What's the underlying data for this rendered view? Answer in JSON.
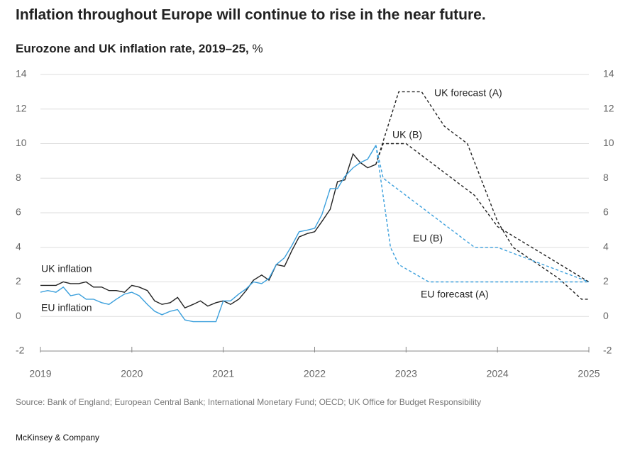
{
  "chart_data": {
    "type": "line",
    "title": "Inflation throughout Europe will continue to rise in the near future.",
    "subtitle": "Eurozone and UK inflation rate, 2019–25,",
    "unit": "%",
    "source": "Source: Bank of England; European Central Bank; International Monetary Fund; OECD; UK Office for Budget Responsibility",
    "footer": "McKinsey & Company",
    "xlim": [
      2019,
      2025
    ],
    "xticks": [
      2019,
      2020,
      2021,
      2022,
      2023,
      2024,
      2025
    ],
    "ylim": [
      -2,
      14
    ],
    "yticks": [
      -2,
      0,
      2,
      4,
      6,
      8,
      10,
      12,
      14
    ],
    "grid": true,
    "right_axis": true,
    "series": [
      {
        "name": "UK inflation",
        "color": "#222222",
        "style": "solid",
        "x": [
          2019,
          2019.08,
          2019.17,
          2019.25,
          2019.33,
          2019.42,
          2019.5,
          2019.58,
          2019.67,
          2019.75,
          2019.83,
          2019.92,
          2020,
          2020.08,
          2020.17,
          2020.25,
          2020.33,
          2020.42,
          2020.5,
          2020.58,
          2020.67,
          2020.75,
          2020.83,
          2020.92,
          2021,
          2021.08,
          2021.17,
          2021.25,
          2021.33,
          2021.42,
          2021.5,
          2021.58,
          2021.67,
          2021.75,
          2021.83,
          2021.92,
          2022,
          2022.08,
          2022.17,
          2022.25,
          2022.33,
          2022.42,
          2022.5,
          2022.58,
          2022.67
        ],
        "values": [
          1.8,
          1.8,
          1.8,
          2.0,
          1.9,
          1.9,
          2.0,
          1.7,
          1.7,
          1.5,
          1.5,
          1.4,
          1.8,
          1.7,
          1.5,
          0.9,
          0.7,
          0.8,
          1.1,
          0.5,
          0.7,
          0.9,
          0.6,
          0.8,
          0.9,
          0.7,
          1.0,
          1.5,
          2.1,
          2.4,
          2.1,
          3.0,
          2.9,
          3.8,
          4.6,
          4.8,
          4.9,
          5.5,
          6.2,
          7.8,
          7.9,
          9.4,
          8.9,
          8.6,
          8.8
        ]
      },
      {
        "name": "EU inflation",
        "color": "#3a9fdc",
        "style": "solid",
        "x": [
          2019,
          2019.08,
          2019.17,
          2019.25,
          2019.33,
          2019.42,
          2019.5,
          2019.58,
          2019.67,
          2019.75,
          2019.83,
          2019.92,
          2020,
          2020.08,
          2020.17,
          2020.25,
          2020.33,
          2020.42,
          2020.5,
          2020.58,
          2020.67,
          2020.75,
          2020.83,
          2020.92,
          2021,
          2021.08,
          2021.17,
          2021.25,
          2021.33,
          2021.42,
          2021.5,
          2021.58,
          2021.67,
          2021.75,
          2021.83,
          2021.92,
          2022,
          2022.08,
          2022.17,
          2022.25,
          2022.33,
          2022.42,
          2022.5,
          2022.58,
          2022.67
        ],
        "values": [
          1.4,
          1.5,
          1.4,
          1.7,
          1.2,
          1.3,
          1.0,
          1.0,
          0.8,
          0.7,
          1.0,
          1.3,
          1.4,
          1.2,
          0.7,
          0.3,
          0.1,
          0.3,
          0.4,
          -0.2,
          -0.3,
          -0.3,
          -0.3,
          -0.3,
          0.9,
          0.9,
          1.3,
          1.6,
          2.0,
          1.9,
          2.2,
          3.0,
          3.4,
          4.1,
          4.9,
          5.0,
          5.1,
          5.9,
          7.4,
          7.4,
          8.1,
          8.6,
          8.9,
          9.1,
          9.9
        ]
      },
      {
        "name": "UK forecast (A)",
        "color": "#222222",
        "style": "dashed",
        "x": [
          2022.67,
          2022.92,
          2023.17,
          2023.42,
          2023.67,
          2024,
          2024.17,
          2024.67,
          2024.92,
          2025
        ],
        "values": [
          8.8,
          13,
          13,
          11,
          10,
          5.5,
          4,
          2.2,
          1,
          1
        ]
      },
      {
        "name": "UK (B)",
        "color": "#222222",
        "style": "dashed",
        "x": [
          2022.67,
          2022.75,
          2023,
          2023.75,
          2024,
          2025
        ],
        "values": [
          8.8,
          10,
          10,
          7,
          5.2,
          2
        ]
      },
      {
        "name": "EU (B)",
        "color": "#3a9fdc",
        "style": "dashed",
        "x": [
          2022.67,
          2022.75,
          2023.75,
          2024,
          2025
        ],
        "values": [
          9.9,
          8,
          4,
          4,
          2
        ]
      },
      {
        "name": "EU forecast (A)",
        "color": "#3a9fdc",
        "style": "dashed",
        "x": [
          2022.67,
          2022.83,
          2022.92,
          2023.25,
          2025
        ],
        "values": [
          9.9,
          4,
          3,
          2,
          2
        ]
      }
    ]
  }
}
